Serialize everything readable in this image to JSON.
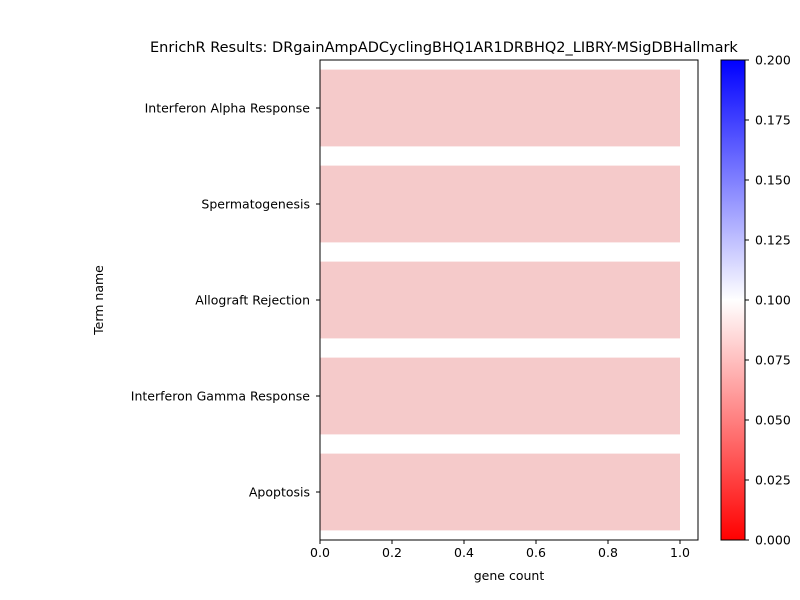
{
  "chart_data": {
    "type": "bar",
    "orientation": "horizontal",
    "title": "EnrichR Results: DRgainAmpADCyclingBHQ1AR1DRBHQ2_LIBRY-MSigDBHallmark",
    "xlabel": "gene count",
    "ylabel": "Term name",
    "categories": [
      "Interferon Alpha Response",
      "Spermatogenesis",
      "Allograft Rejection",
      "Interferon Gamma Response",
      "Apoptosis"
    ],
    "values": [
      1,
      1,
      1,
      1,
      1
    ],
    "color_values": [
      0.085,
      0.085,
      0.085,
      0.085,
      0.085
    ],
    "bar_color": "#f5caca",
    "xlim": [
      0,
      1.05
    ],
    "xticks": [
      "0.0",
      "0.2",
      "0.4",
      "0.6",
      "0.8",
      "1.0"
    ],
    "colorbar": {
      "range": [
        0,
        0.2
      ],
      "colormap": "bwr",
      "colors": [
        "#ff0000",
        "#ffffff",
        "#0000ff"
      ],
      "ticks": [
        "0.000",
        "0.025",
        "0.050",
        "0.075",
        "0.100",
        "0.125",
        "0.150",
        "0.175",
        "0.200"
      ]
    },
    "grid": false,
    "legend": "none"
  }
}
